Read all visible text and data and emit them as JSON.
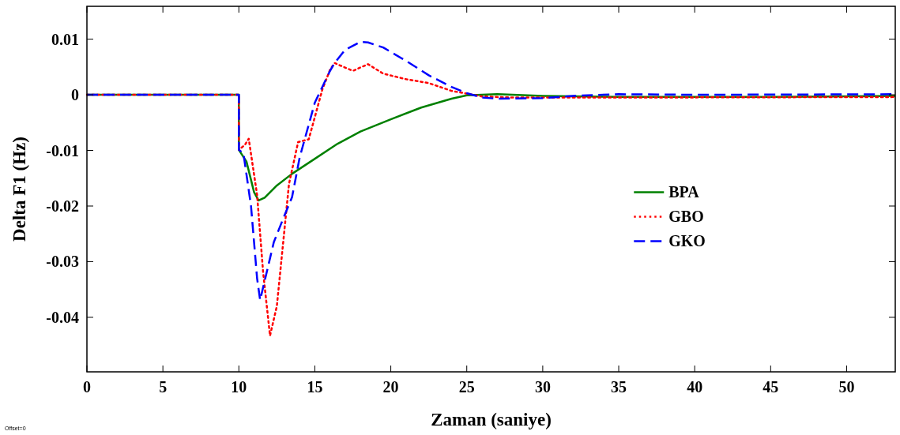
{
  "chart_data": {
    "type": "line",
    "xlabel": "Zaman (saniye)",
    "ylabel": "Delta F1 (Hz)",
    "xlim": [
      0,
      53.2
    ],
    "ylim": [
      -0.0498,
      0.0159
    ],
    "xticks": [
      0,
      5,
      10,
      15,
      20,
      25,
      30,
      35,
      40,
      45,
      50
    ],
    "yticks": [
      {
        "value": -0.04,
        "label": "-0.04"
      },
      {
        "value": -0.03,
        "label": "-0.03"
      },
      {
        "value": -0.02,
        "label": "-0.02"
      },
      {
        "value": -0.01,
        "label": "-0.01"
      },
      0,
      {
        "value": 0.01,
        "label": "0.01"
      }
    ],
    "grid": false,
    "legend": "right",
    "annotations": [
      "Offset=0"
    ],
    "series": [
      {
        "name": "BPA",
        "color": "#008000",
        "line_style": "solid",
        "x": [
          0,
          10,
          10,
          10.5,
          11,
          11.3,
          11.7,
          12.5,
          13.5,
          15,
          16.5,
          18,
          20,
          22,
          24,
          25,
          27,
          30,
          35,
          45,
          53.2
        ],
        "values": [
          0,
          0,
          -0.0099,
          -0.012,
          -0.0175,
          -0.019,
          -0.0185,
          -0.0163,
          -0.0142,
          -0.0115,
          -0.0088,
          -0.0066,
          -0.0044,
          -0.0023,
          -0.0007,
          -0.0001,
          0.0001,
          -0.0002,
          -0.0004,
          -0.0004,
          -0.0002
        ]
      },
      {
        "name": "GBO",
        "color": "#ff0000",
        "line_style": "dotted",
        "x": [
          0,
          10,
          10,
          10.4,
          10.65,
          11.2,
          11.6,
          12.05,
          12.5,
          12.9,
          13.3,
          13.9,
          14.6,
          15,
          15.5,
          16,
          16.3,
          17.5,
          18.5,
          19.5,
          21,
          22.5,
          24,
          25,
          26,
          28,
          35,
          53.2
        ],
        "values": [
          0,
          0,
          -0.0099,
          -0.009,
          -0.0079,
          -0.018,
          -0.032,
          -0.0433,
          -0.038,
          -0.027,
          -0.016,
          -0.0085,
          -0.008,
          -0.004,
          0.001,
          0.0045,
          0.0057,
          0.0043,
          0.0055,
          0.0038,
          0.0028,
          0.0021,
          0.0007,
          0.0002,
          -0.0003,
          -0.0005,
          -0.0005,
          -0.0004
        ]
      },
      {
        "name": "GKO",
        "color": "#0000ff",
        "line_style": "dashed",
        "x": [
          0,
          10,
          10,
          10.3,
          10.8,
          11.2,
          11.4,
          12.3,
          13,
          13.5,
          14,
          15,
          16,
          16.3,
          17,
          18,
          18.5,
          19.5,
          21,
          22.5,
          24,
          25,
          26,
          27,
          30,
          32,
          35,
          40,
          53.2
        ],
        "values": [
          0,
          0,
          -0.0099,
          -0.0105,
          -0.02,
          -0.033,
          -0.0369,
          -0.0265,
          -0.0217,
          -0.0184,
          -0.0113,
          -0.0014,
          0.0043,
          0.0057,
          0.0081,
          0.0095,
          0.0094,
          0.0085,
          0.0061,
          0.0035,
          0.0014,
          0.0003,
          -0.0005,
          -0.0007,
          -0.0006,
          -0.0002,
          0.0001,
          0,
          0.0001
        ]
      }
    ]
  }
}
